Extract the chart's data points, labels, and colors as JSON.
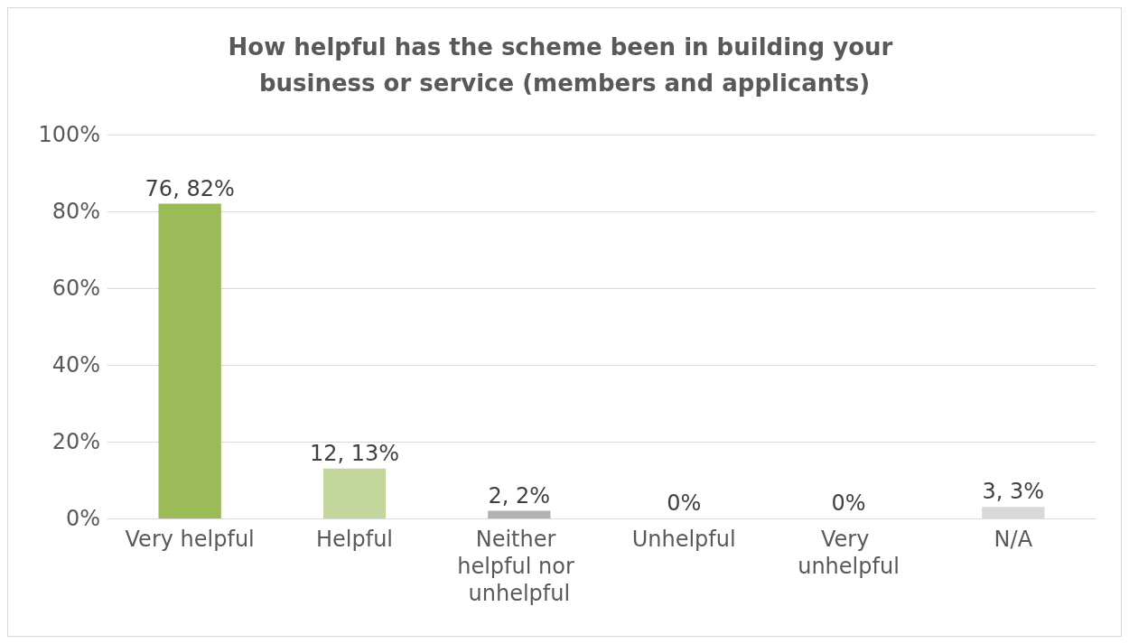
{
  "chart_data": {
    "type": "bar",
    "title": "How helpful has the scheme been in building your business or service (members and applicants)",
    "categories": [
      "Very helpful",
      "Helpful",
      "Neither helpful nor unhelpful",
      "Unhelpful",
      "Very unhelpful",
      "N/A"
    ],
    "values": [
      82,
      13,
      2,
      0,
      0,
      3
    ],
    "value_labels": [
      "76, 82%",
      "12, 13%",
      "2, 2%",
      "0%",
      "0%",
      "3, 3%"
    ],
    "colors": [
      "#9bbb59",
      "#c3d69b",
      "#b2b2b2",
      "#b2b2b2",
      "#b2b2b2",
      "#d9d9d9"
    ],
    "ylim": [
      0,
      100
    ],
    "yticks": [
      {
        "value": 0,
        "label": "0%"
      },
      {
        "value": 20,
        "label": "20%"
      },
      {
        "value": 40,
        "label": "40%"
      },
      {
        "value": 60,
        "label": "60%"
      },
      {
        "value": 80,
        "label": "80%"
      },
      {
        "value": 100,
        "label": "100%"
      }
    ],
    "grid": "y"
  }
}
